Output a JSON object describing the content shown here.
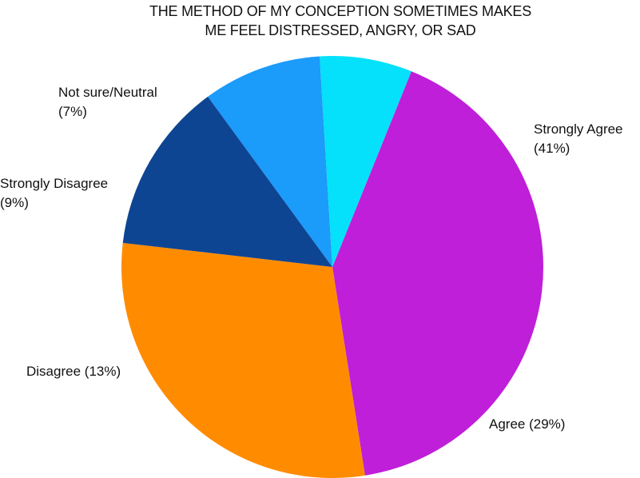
{
  "chart_data": {
    "type": "pie",
    "title_lines": [
      "THE METHOD OF MY CONCEPTION SOMETIMES MAKES",
      "ME FEEL DISTRESSED, ANGRY, OR SAD"
    ],
    "slices": [
      {
        "label": "Strongly Agree",
        "value": 41,
        "value_text": "(41%)",
        "color": "#bf1fd9"
      },
      {
        "label": "Agree",
        "value": 29,
        "value_text": "(29%)",
        "color": "#ff8c00"
      },
      {
        "label": "Disagree",
        "value": 13,
        "value_text": "(13%)",
        "color": "#0e4592"
      },
      {
        "label": "Strongly Disagree",
        "value": 9,
        "value_text": "(9%)",
        "color": "#1b9bfa"
      },
      {
        "label": "Not sure/Neutral",
        "value": 7,
        "value_text": "(7%)",
        "color": "#05e1fa"
      }
    ],
    "legend": "none"
  }
}
